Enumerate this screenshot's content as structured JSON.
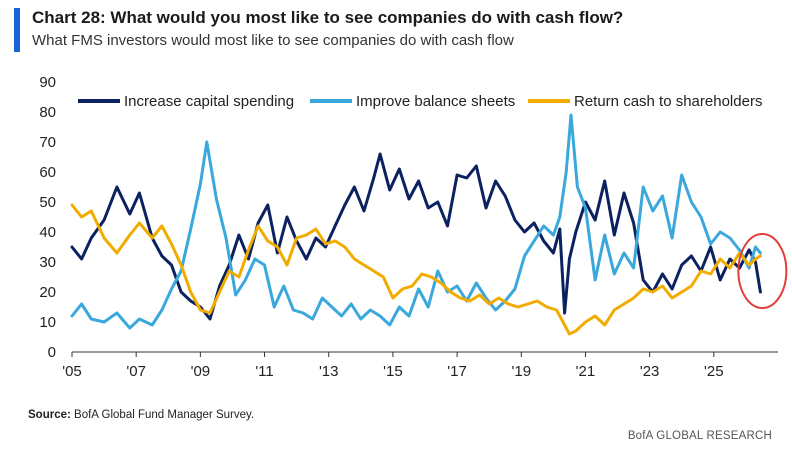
{
  "header": {
    "title": "Chart 28: What would you most like to see companies do with cash flow?",
    "subtitle": "What FMS investors would most like to see companies do with cash flow"
  },
  "footer": {
    "source_label": "Source:",
    "source_text": "BofA Global Fund Manager Survey.",
    "brand": "BofA GLOBAL RESEARCH"
  },
  "colors": {
    "accent": "#1565d8",
    "capital_spending": "#0b2160",
    "balance_sheets": "#3aa8dd",
    "return_cash": "#f2ac00",
    "highlight_circle": "#e0403a"
  },
  "chart_data": {
    "type": "line",
    "title": "Chart 28: What would you most like to see companies do with cash flow?",
    "subtitle": "What FMS investors would most like to see companies do with cash flow",
    "xlabel": "",
    "ylabel": "",
    "xlim": [
      2005.0,
      2027.0
    ],
    "ylim": [
      0,
      90
    ],
    "yticks": [
      0,
      10,
      20,
      30,
      40,
      50,
      60,
      70,
      80,
      90
    ],
    "xticks": [
      2005,
      2007,
      2009,
      2011,
      2013,
      2015,
      2017,
      2019,
      2021,
      2023,
      2025
    ],
    "xtick_labels": [
      "'05",
      "'07",
      "'09",
      "'11",
      "'13",
      "'15",
      "'17",
      "'19",
      "'21",
      "'23",
      "'25"
    ],
    "grid": false,
    "legend_position": "top",
    "annotation": "red circle around latest values",
    "series": [
      {
        "name": "Increase capital spending",
        "color": "#0b2160",
        "x": [
          2005.0,
          2005.3,
          2005.6,
          2006.0,
          2006.4,
          2006.8,
          2007.1,
          2007.5,
          2007.8,
          2008.1,
          2008.4,
          2008.7,
          2009.0,
          2009.3,
          2009.6,
          2009.9,
          2010.2,
          2010.5,
          2010.8,
          2011.1,
          2011.4,
          2011.7,
          2012.0,
          2012.3,
          2012.6,
          2012.9,
          2013.2,
          2013.5,
          2013.8,
          2014.1,
          2014.4,
          2014.6,
          2014.9,
          2015.2,
          2015.5,
          2015.8,
          2016.1,
          2016.4,
          2016.7,
          2017.0,
          2017.3,
          2017.6,
          2017.9,
          2018.2,
          2018.5,
          2018.8,
          2019.1,
          2019.4,
          2019.7,
          2020.0,
          2020.2,
          2020.35,
          2020.5,
          2020.7,
          2021.0,
          2021.3,
          2021.6,
          2021.9,
          2022.2,
          2022.5,
          2022.8,
          2023.1,
          2023.4,
          2023.7,
          2024.0,
          2024.3,
          2024.6,
          2024.9,
          2025.2,
          2025.5,
          2025.8,
          2026.1,
          2026.3,
          2026.45
        ],
        "values": [
          35,
          31,
          38,
          44,
          55,
          46,
          53,
          38,
          32,
          29,
          20,
          17,
          15,
          11,
          22,
          29,
          39,
          31,
          43,
          49,
          33,
          45,
          37,
          31,
          38,
          35,
          42,
          49,
          55,
          47,
          58,
          66,
          54,
          61,
          51,
          57,
          48,
          50,
          42,
          59,
          58,
          62,
          48,
          57,
          52,
          44,
          40,
          43,
          37,
          33,
          41,
          13,
          31,
          40,
          50,
          44,
          57,
          39,
          53,
          43,
          24,
          20,
          26,
          21,
          29,
          32,
          27,
          35,
          24,
          31,
          28,
          34,
          30,
          20
        ]
      },
      {
        "name": "Improve balance sheets",
        "color": "#3aa8dd",
        "x": [
          2005.0,
          2005.3,
          2005.6,
          2006.0,
          2006.4,
          2006.8,
          2007.1,
          2007.5,
          2007.8,
          2008.1,
          2008.4,
          2008.7,
          2009.0,
          2009.2,
          2009.5,
          2009.8,
          2010.1,
          2010.4,
          2010.7,
          2011.0,
          2011.3,
          2011.6,
          2011.9,
          2012.2,
          2012.5,
          2012.8,
          2013.1,
          2013.4,
          2013.7,
          2014.0,
          2014.3,
          2014.6,
          2014.9,
          2015.2,
          2015.5,
          2015.8,
          2016.1,
          2016.4,
          2016.7,
          2017.0,
          2017.3,
          2017.6,
          2017.9,
          2018.2,
          2018.5,
          2018.8,
          2019.1,
          2019.4,
          2019.7,
          2020.0,
          2020.2,
          2020.4,
          2020.55,
          2020.75,
          2021.0,
          2021.3,
          2021.6,
          2021.9,
          2022.2,
          2022.5,
          2022.8,
          2023.1,
          2023.4,
          2023.7,
          2024.0,
          2024.3,
          2024.6,
          2024.9,
          2025.2,
          2025.5,
          2025.8,
          2026.1,
          2026.3,
          2026.45
        ],
        "values": [
          12,
          16,
          11,
          10,
          13,
          8,
          11,
          9,
          14,
          21,
          27,
          41,
          56,
          70,
          51,
          38,
          19,
          24,
          31,
          29,
          15,
          22,
          14,
          13,
          11,
          18,
          15,
          12,
          16,
          11,
          14,
          12,
          9,
          15,
          12,
          21,
          15,
          27,
          20,
          22,
          17,
          23,
          18,
          14,
          17,
          21,
          32,
          37,
          42,
          39,
          45,
          60,
          79,
          55,
          48,
          24,
          39,
          26,
          33,
          28,
          55,
          47,
          52,
          38,
          59,
          50,
          45,
          36,
          40,
          38,
          34,
          28,
          35,
          33
        ]
      },
      {
        "name": "Return cash to shareholders",
        "color": "#f2ac00",
        "x": [
          2005.0,
          2005.3,
          2005.6,
          2006.0,
          2006.4,
          2006.8,
          2007.1,
          2007.5,
          2007.8,
          2008.1,
          2008.4,
          2008.7,
          2009.0,
          2009.3,
          2009.6,
          2009.9,
          2010.2,
          2010.5,
          2010.8,
          2011.1,
          2011.4,
          2011.7,
          2012.0,
          2012.3,
          2012.6,
          2012.9,
          2013.2,
          2013.5,
          2013.8,
          2014.1,
          2014.4,
          2014.7,
          2015.0,
          2015.3,
          2015.6,
          2015.9,
          2016.2,
          2016.5,
          2016.8,
          2017.1,
          2017.4,
          2017.7,
          2018.0,
          2018.3,
          2018.6,
          2018.9,
          2019.2,
          2019.5,
          2019.8,
          2020.1,
          2020.3,
          2020.5,
          2020.7,
          2021.0,
          2021.3,
          2021.6,
          2021.9,
          2022.2,
          2022.5,
          2022.8,
          2023.1,
          2023.4,
          2023.7,
          2024.0,
          2024.3,
          2024.6,
          2024.9,
          2025.2,
          2025.5,
          2025.8,
          2026.1,
          2026.3,
          2026.45
        ],
        "values": [
          49,
          45,
          47,
          38,
          33,
          39,
          43,
          38,
          42,
          36,
          29,
          20,
          14,
          13,
          20,
          27,
          25,
          34,
          42,
          37,
          35,
          29,
          38,
          39,
          41,
          36,
          37,
          35,
          31,
          29,
          27,
          25,
          18,
          21,
          22,
          26,
          25,
          23,
          20,
          18,
          17,
          19,
          16,
          18,
          16,
          15,
          16,
          17,
          15,
          14,
          10,
          6,
          7,
          10,
          12,
          9,
          14,
          16,
          18,
          21,
          20,
          22,
          18,
          20,
          22,
          27,
          26,
          31,
          28,
          33,
          29,
          31,
          32
        ]
      }
    ]
  }
}
